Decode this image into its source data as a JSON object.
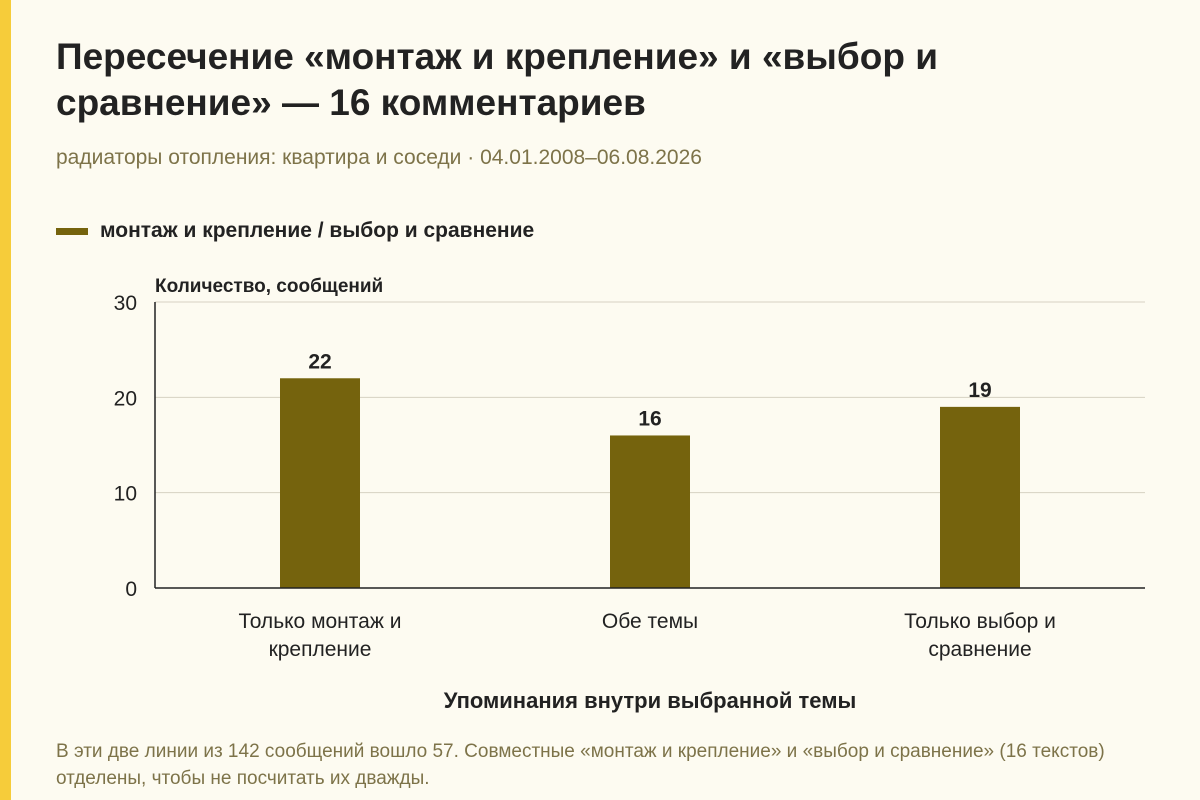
{
  "header": {
    "title": "Пересечение «монтаж и крепление» и «выбор и сравнение» — 16 комментариев",
    "subtitle": "радиаторы отопления: квартира и соседи · 04.01.2008–06.08.2026"
  },
  "colors": {
    "accent": "#f6cc3a",
    "bar": "#75630d",
    "background": "#fdfbf1"
  },
  "legend": {
    "label": "монтаж и крепление / выбор и сравнение",
    "placement": "top-left"
  },
  "chart_data": {
    "type": "bar",
    "categories": [
      [
        "Только монтаж и",
        "крепление"
      ],
      [
        "Обе темы"
      ],
      [
        "Только выбор и",
        "сравнение"
      ]
    ],
    "series": [
      {
        "name": "монтаж и крепление / выбор и сравнение",
        "values": [
          22,
          16,
          19
        ]
      }
    ],
    "ylabel": "Количество, сообщений",
    "xlabel": "Упоминания внутри выбранной темы",
    "ylim": [
      0,
      30
    ],
    "yticks": [
      0,
      10,
      20,
      30
    ],
    "grid": true
  },
  "footnote": "В эти две линии из 142 сообщений вошло 57. Совместные «монтаж и крепление» и «выбор и сравнение» (16 текстов) отделены, чтобы не посчитать их дважды."
}
